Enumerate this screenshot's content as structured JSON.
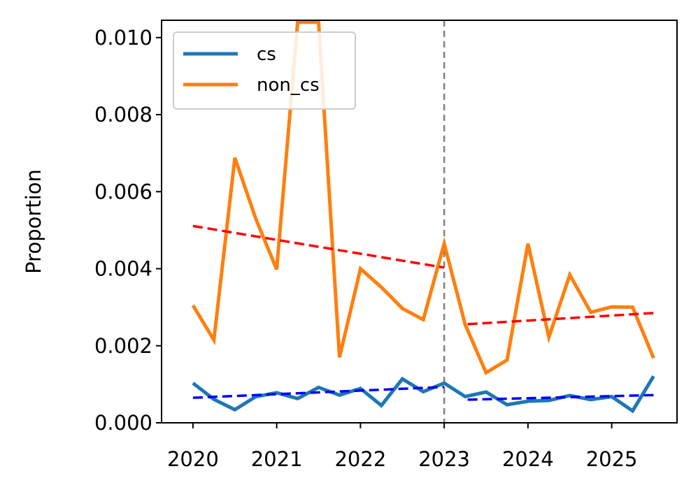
{
  "chart_data": {
    "type": "line",
    "title": "",
    "xlabel": "",
    "ylabel": "Proportion",
    "xlim": [
      2019.625,
      2025.78
    ],
    "ylim": [
      0,
      0.01045
    ],
    "x_ticks": [
      2020,
      2021,
      2022,
      2023,
      2024,
      2025
    ],
    "y_ticks": [
      "0.000",
      "0.002",
      "0.004",
      "0.006",
      "0.008",
      "0.010"
    ],
    "legend_position": "upper-left",
    "grid": false,
    "vline": {
      "x": 2023,
      "color": "#808080",
      "style": "dashed"
    },
    "series": [
      {
        "name": "cs",
        "color": "#1f77b4",
        "x": [
          2020.0,
          2020.25,
          2020.5,
          2020.75,
          2021.0,
          2021.25,
          2021.5,
          2021.75,
          2022.0,
          2022.25,
          2022.5,
          2022.75,
          2023.0,
          2023.25,
          2023.5,
          2023.75,
          2024.0,
          2024.25,
          2024.5,
          2024.75,
          2025.0,
          2025.25,
          2025.5
        ],
        "y": [
          0.00103,
          0.00061,
          0.00034,
          0.00068,
          0.00078,
          0.00063,
          0.00092,
          0.00072,
          0.00089,
          0.00045,
          0.00114,
          0.00081,
          0.00103,
          0.00068,
          0.0008,
          0.00047,
          0.00056,
          0.00058,
          0.00071,
          0.0006,
          0.00068,
          0.00031,
          0.00121
        ]
      },
      {
        "name": "non_cs",
        "color": "#ff7f0e",
        "x": [
          2020.0,
          2020.25,
          2020.5,
          2020.75,
          2021.0,
          2021.25,
          2021.5,
          2021.75,
          2022.0,
          2022.25,
          2022.5,
          2022.75,
          2023.0,
          2023.25,
          2023.5,
          2023.75,
          2024.0,
          2024.25,
          2024.5,
          2024.75,
          2025.0,
          2025.25,
          2025.5
        ],
        "y": [
          0.00305,
          0.00215,
          0.00688,
          0.0053,
          0.00398,
          0.0104,
          0.0104,
          0.0017,
          0.004,
          0.00352,
          0.00297,
          0.00268,
          0.00465,
          0.00255,
          0.0013,
          0.00163,
          0.00465,
          0.00222,
          0.00384,
          0.00287,
          0.00301,
          0.003,
          0.00168
        ]
      }
    ],
    "trend_lines": [
      {
        "color": "#ff0000",
        "x": [
          2020.0,
          2023.0
        ],
        "y": [
          0.00511,
          0.00403
        ]
      },
      {
        "color": "#ff0000",
        "x": [
          2023.28,
          2025.5
        ],
        "y": [
          0.00256,
          0.00285
        ]
      },
      {
        "color": "#0000ff",
        "x": [
          2020.0,
          2023.0
        ],
        "y": [
          0.00065,
          0.00093
        ]
      },
      {
        "color": "#0000ff",
        "x": [
          2023.28,
          2025.5
        ],
        "y": [
          0.0006,
          0.00072
        ]
      }
    ]
  }
}
